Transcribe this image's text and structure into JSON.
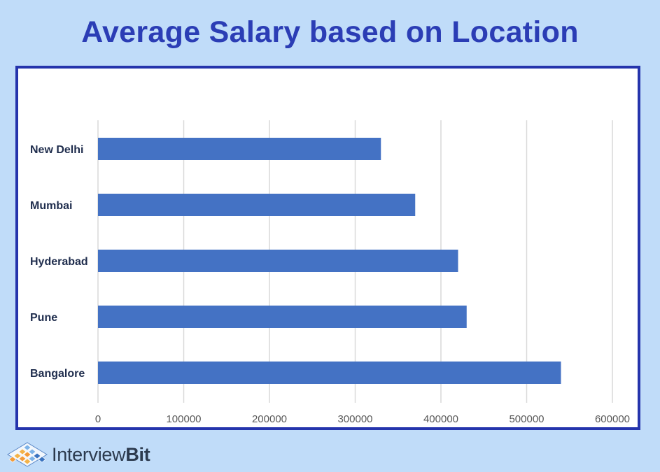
{
  "chart_data": {
    "type": "bar",
    "orientation": "horizontal",
    "title": "Average Salary based on Location",
    "categories": [
      "New Delhi",
      "Mumbai",
      "Hyderabad",
      "Pune",
      "Bangalore"
    ],
    "values": [
      330000,
      370000,
      420000,
      430000,
      540000
    ],
    "xlim": [
      0,
      600000
    ],
    "xticks": [
      "0",
      "100000",
      "200000",
      "300000",
      "400000",
      "500000",
      "600000"
    ],
    "xlabel": "",
    "ylabel": "",
    "grid": "vertical",
    "bar_color": "#4472c4",
    "grid_color": "#d9d9d9"
  },
  "brand": {
    "name_light": "Interview",
    "name_bold": "Bit",
    "logo_icon": "interviewbit-diamond-logo"
  },
  "colors": {
    "background": "#c0dcf9",
    "title": "#2b3db5",
    "frame": "#2534ac",
    "category_label": "#1f2d4d",
    "tick_label": "#595959"
  }
}
